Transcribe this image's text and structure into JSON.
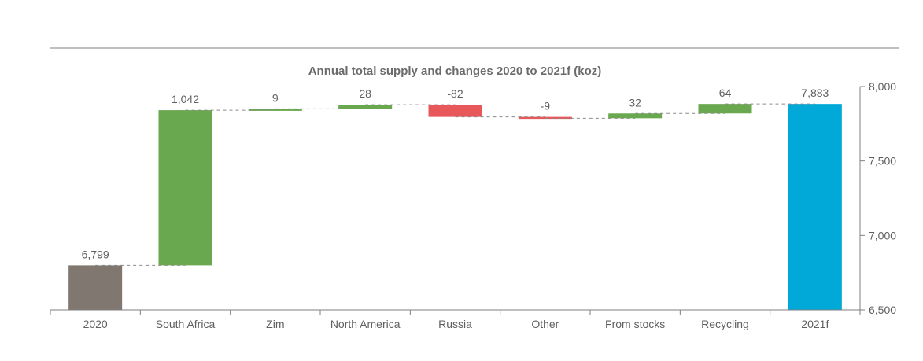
{
  "chart_data": {
    "type": "waterfall",
    "title": "Annual total supply and changes 2020 to 2021f (koz)",
    "xlabel": "",
    "ylabel": "",
    "ylim": [
      6500,
      8000
    ],
    "yticks": [
      6500,
      7000,
      7500,
      8000
    ],
    "ytick_labels": [
      "6,500",
      "7,000",
      "7,500",
      "8,000"
    ],
    "y_axis_side": "right",
    "grid": false,
    "categories": [
      "2020",
      "South Africa",
      "Zim",
      "North America",
      "Russia",
      "Other",
      "From stocks",
      "Recycling",
      "2021f"
    ],
    "values": [
      6799,
      1042,
      9,
      28,
      -82,
      -9,
      32,
      64,
      7883
    ],
    "kinds": [
      "total",
      "delta",
      "delta",
      "delta",
      "delta",
      "delta",
      "delta",
      "delta",
      "total"
    ],
    "labels": [
      "6,799",
      "1,042",
      "9",
      "28",
      "-82",
      "-9",
      "32",
      "64",
      "7,883"
    ],
    "colors": {
      "start_total": "#7f7770",
      "end_total": "#00a9d8",
      "increase": "#6aa84f",
      "decrease": "#e8585a",
      "connector": "#8a8a8a",
      "axis": "#7f7f7f"
    }
  }
}
